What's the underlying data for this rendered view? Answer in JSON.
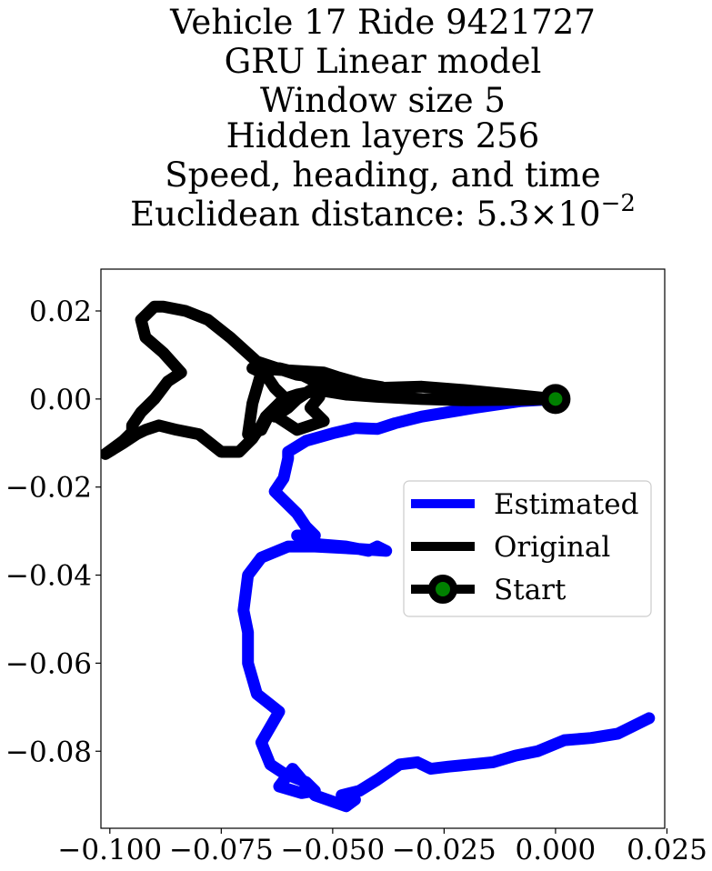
{
  "chart_data": {
    "type": "line",
    "title_lines": [
      "Vehicle 17 Ride 9421727",
      "GRU Linear model",
      "Window size 5",
      "Hidden layers 256",
      "Speed, heading, and time"
    ],
    "title_last_prefix": "Euclidean distance: 5.3",
    "title_last_times": "×",
    "title_last_base": "10",
    "title_last_exp": "−2",
    "xlim": [
      -0.102,
      0.0245
    ],
    "ylim": [
      -0.0975,
      0.0295
    ],
    "xticks": [
      -0.1,
      -0.075,
      -0.05,
      -0.025,
      0.0,
      0.025
    ],
    "xtick_labels": [
      "−0.100",
      "−0.075",
      "−0.050",
      "−0.025",
      "0.000",
      "0.025"
    ],
    "yticks": [
      0.02,
      0.0,
      -0.02,
      -0.04,
      -0.06,
      -0.08
    ],
    "ytick_labels": [
      "0.02",
      "0.00",
      "−0.02",
      "−0.04",
      "−0.06",
      "−0.08"
    ],
    "grid": false,
    "legend_position": "center-right",
    "series": [
      {
        "name": "Estimated",
        "color": "#0000ff",
        "x": [
          0.0,
          -0.008,
          -0.018,
          -0.03,
          -0.036,
          -0.04,
          -0.045,
          -0.05,
          -0.056,
          -0.06,
          -0.06,
          -0.061,
          -0.063,
          -0.058,
          -0.056,
          -0.054,
          -0.058,
          -0.053,
          -0.047,
          -0.042,
          -0.04,
          -0.038,
          -0.045,
          -0.054,
          -0.06,
          -0.066,
          -0.069,
          -0.07,
          -0.069,
          -0.069,
          -0.067,
          -0.062,
          -0.066,
          -0.064,
          -0.061,
          -0.056,
          -0.054,
          -0.057,
          -0.062,
          -0.059,
          -0.054,
          -0.047,
          -0.045,
          -0.048,
          -0.044,
          -0.04,
          -0.035,
          -0.031,
          -0.028,
          -0.024,
          -0.019,
          -0.014,
          -0.009,
          -0.004,
          0.002,
          0.008,
          0.014,
          0.021
        ],
        "y": [
          0.0,
          -0.0005,
          -0.002,
          -0.004,
          -0.0055,
          -0.0068,
          -0.0066,
          -0.0078,
          -0.0095,
          -0.012,
          -0.0135,
          -0.018,
          -0.021,
          -0.026,
          -0.029,
          -0.031,
          -0.031,
          -0.033,
          -0.0335,
          -0.0345,
          -0.0335,
          -0.0345,
          -0.034,
          -0.0335,
          -0.0335,
          -0.036,
          -0.04,
          -0.048,
          -0.053,
          -0.06,
          -0.067,
          -0.071,
          -0.078,
          -0.083,
          -0.085,
          -0.087,
          -0.089,
          -0.0895,
          -0.088,
          -0.084,
          -0.09,
          -0.0925,
          -0.091,
          -0.09,
          -0.089,
          -0.0865,
          -0.083,
          -0.0825,
          -0.084,
          -0.0835,
          -0.083,
          -0.0825,
          -0.081,
          -0.08,
          -0.0775,
          -0.077,
          -0.076,
          -0.0725
        ]
      },
      {
        "name": "Original",
        "color": "#000000",
        "x": [
          0.0,
          -0.01,
          -0.02,
          -0.03,
          -0.04,
          -0.052,
          -0.058,
          -0.062,
          -0.066,
          -0.063,
          -0.061,
          -0.063,
          -0.06,
          -0.058,
          -0.055,
          -0.053,
          -0.055,
          -0.052,
          -0.058,
          -0.064,
          -0.066,
          -0.069,
          -0.068,
          -0.066,
          -0.068,
          -0.06,
          -0.052,
          -0.049,
          -0.042,
          -0.045,
          -0.038,
          -0.039,
          -0.05,
          -0.058,
          -0.067,
          -0.073,
          -0.078,
          -0.083,
          -0.088,
          -0.09,
          -0.093,
          -0.092,
          -0.088,
          -0.084,
          -0.087,
          -0.09,
          -0.093,
          -0.095,
          -0.095,
          -0.097,
          -0.099,
          -0.101,
          -0.097,
          -0.094,
          -0.092,
          -0.089,
          -0.085,
          -0.08,
          -0.075,
          -0.071,
          -0.068,
          -0.066,
          -0.065,
          -0.063,
          -0.061,
          -0.058,
          -0.053,
          -0.047,
          -0.04,
          -0.03,
          -0.02,
          -0.01,
          0.0
        ],
        "y": [
          0.0,
          0.001,
          0.002,
          0.0028,
          0.0025,
          0.003,
          0.006,
          0.007,
          0.007,
          0.0025,
          0.0005,
          -0.004,
          -0.002,
          0.0,
          0.002,
          0.0005,
          -0.002,
          -0.005,
          -0.007,
          -0.003,
          -0.007,
          -0.008,
          -0.001,
          0.006,
          0.007,
          0.0065,
          0.006,
          0.005,
          0.003,
          0.0025,
          0.002,
          0.0027,
          0.0045,
          0.0055,
          0.0085,
          0.014,
          0.018,
          0.02,
          0.021,
          0.021,
          0.018,
          0.014,
          0.0105,
          0.006,
          0.004,
          0.0,
          -0.003,
          -0.006,
          -0.0075,
          -0.0095,
          -0.011,
          -0.0125,
          -0.01,
          -0.008,
          -0.007,
          -0.006,
          -0.007,
          -0.008,
          -0.012,
          -0.012,
          -0.009,
          -0.006,
          -0.004,
          -0.002,
          0.0,
          0.001,
          0.002,
          0.001,
          0.0005,
          0.0,
          -0.0003,
          -0.0002,
          0.0
        ]
      }
    ],
    "start_marker": {
      "name": "Start",
      "x": 0.0,
      "y": 0.0,
      "line_color": "#000000",
      "marker_face": "#008000",
      "marker_edge": "#000000"
    }
  }
}
